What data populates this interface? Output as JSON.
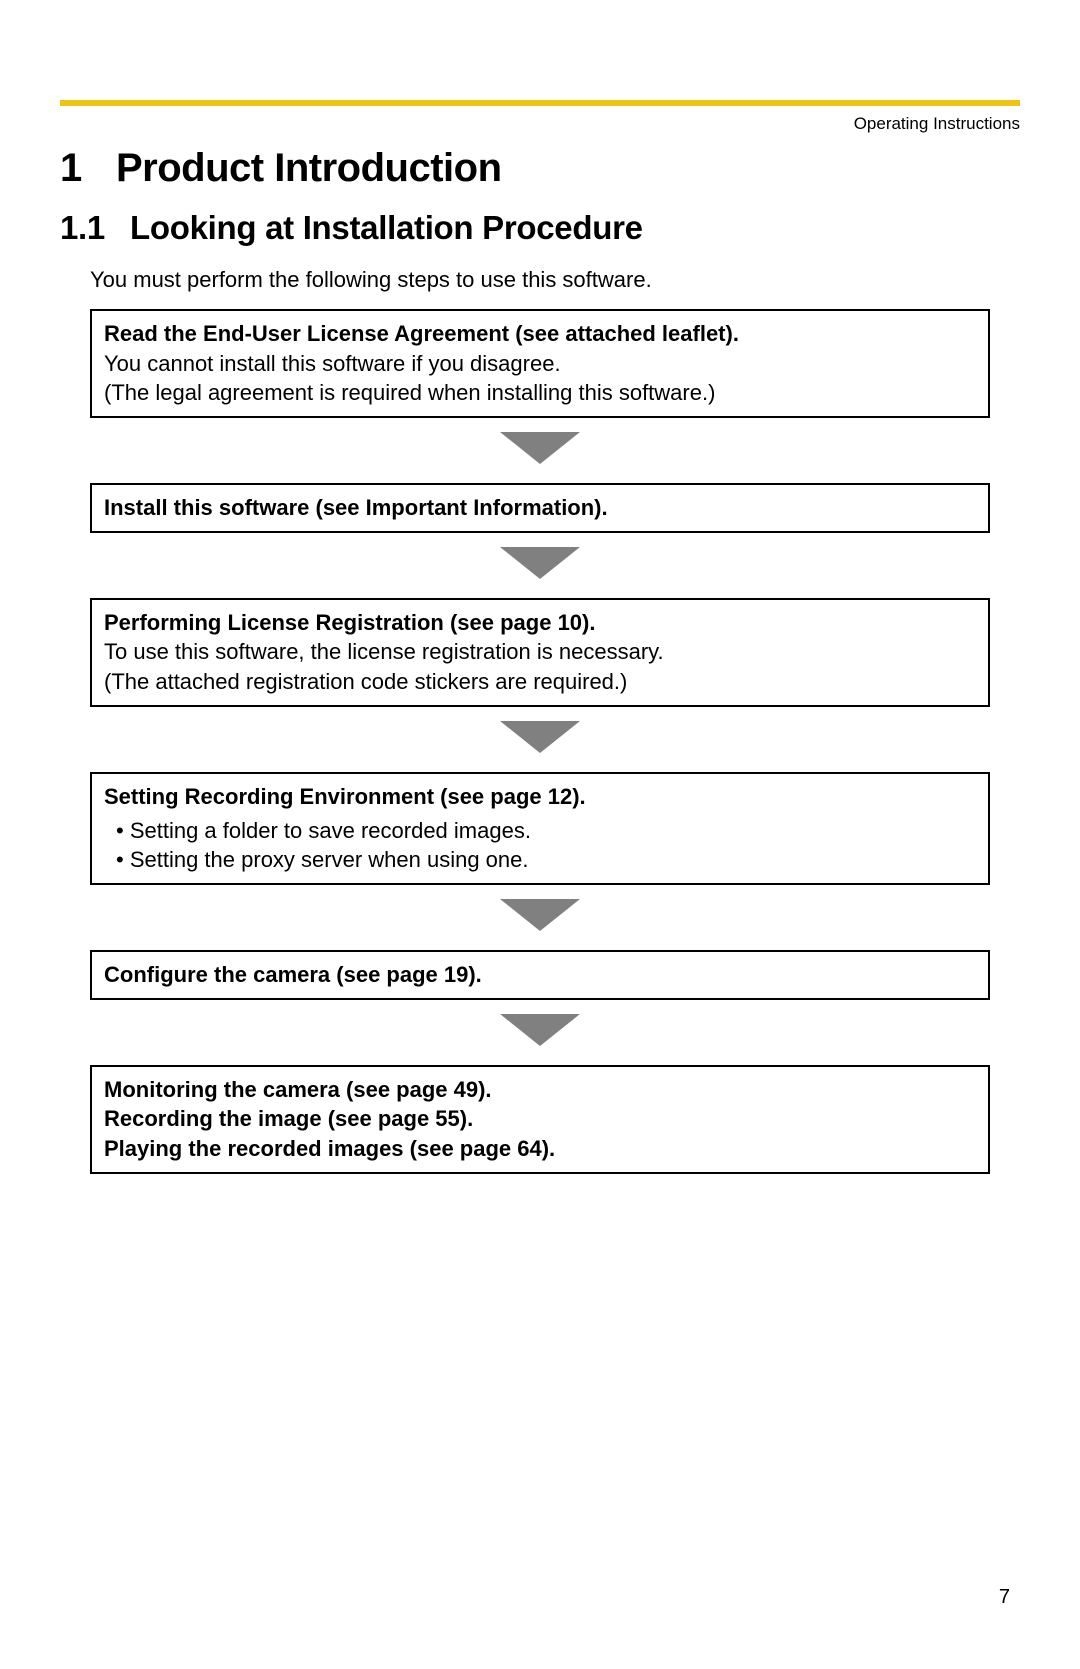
{
  "header": {
    "running_header": "Operating Instructions",
    "accent_color": "#eec510"
  },
  "section": {
    "number": "1",
    "title": "Product Introduction"
  },
  "subsection": {
    "number": "1.1",
    "title": "Looking at Installation Procedure"
  },
  "intro": "You must perform the following steps to use this software.",
  "steps": [
    {
      "title": "Read the End-User License Agreement (see attached leaflet).",
      "body_lines": [
        "You cannot install this software if you disagree.",
        "(The legal agreement is required when installing this software.)"
      ],
      "bullets": []
    },
    {
      "title": "Install this software (see Important Information).",
      "body_lines": [],
      "bullets": []
    },
    {
      "title": "Performing License Registration (see page 10).",
      "body_lines": [
        "To use this software, the license registration is necessary.",
        "(The attached registration code stickers are required.)"
      ],
      "bullets": []
    },
    {
      "title": "Setting Recording Environment (see page 12).",
      "body_lines": [],
      "bullets": [
        "Setting a folder to save recorded images.",
        "Setting the proxy server when using one."
      ]
    },
    {
      "title": "Configure the camera (see page 19).",
      "body_lines": [],
      "bullets": []
    },
    {
      "title_lines": [
        "Monitoring the camera (see page 49).",
        "Recording the image (see page 55).",
        "Playing the recorded images (see page 64)."
      ],
      "body_lines": [],
      "bullets": []
    }
  ],
  "arrow_color": "#808080",
  "page_number": "7"
}
